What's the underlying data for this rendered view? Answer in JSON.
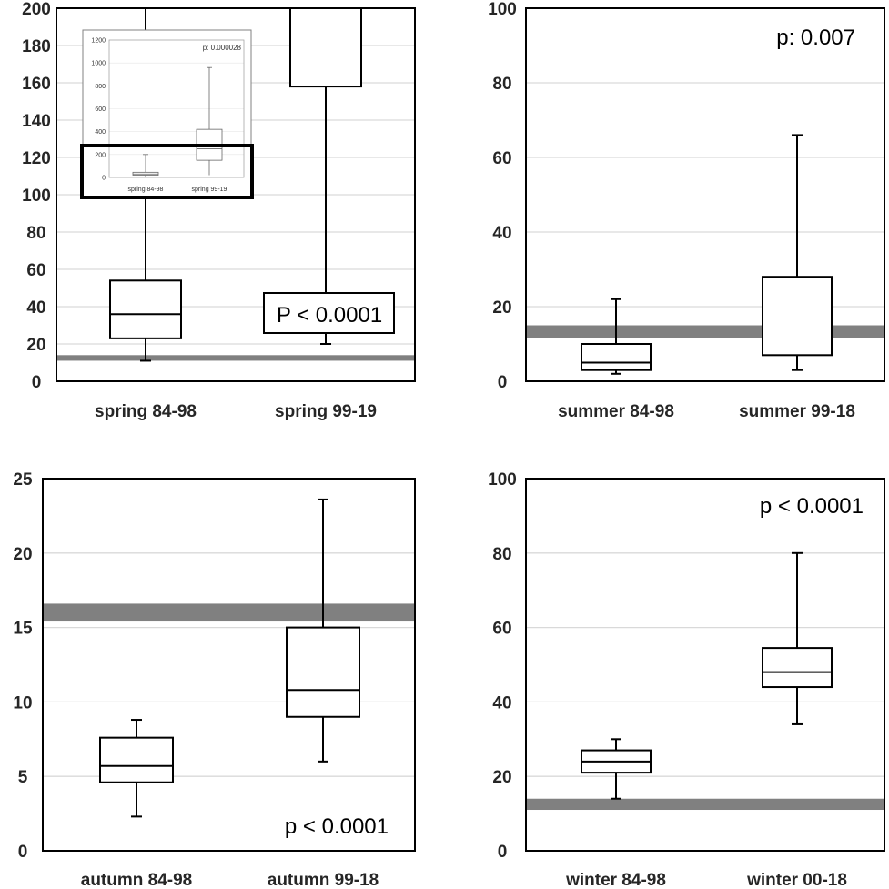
{
  "chart_data": [
    {
      "type": "box",
      "ylim": [
        0,
        200
      ],
      "yticks": [
        0,
        20,
        40,
        60,
        80,
        100,
        120,
        140,
        160,
        180,
        200
      ],
      "categories": [
        "spring  84-98",
        "spring 99-19"
      ],
      "boxes": [
        {
          "whisker_low": 11,
          "q1": 23,
          "median": 36,
          "q3": 54,
          "whisker_high": 200
        },
        {
          "whisker_low": 20,
          "q1": 158,
          "median": null,
          "q3": 200,
          "whisker_high": 200
        }
      ],
      "reference_band": [
        11,
        14
      ],
      "annotation": "P < 0.0001",
      "inset": {
        "ylim": [
          0,
          1200
        ],
        "yticks": [
          0,
          200,
          400,
          600,
          800,
          1000,
          1200
        ],
        "categories": [
          "spring  84-98",
          "spring 99-19"
        ],
        "annotation": "p: 0.000028",
        "boxes": [
          {
            "whisker_low": 5,
            "q1": 20,
            "median": 30,
            "q3": 45,
            "whisker_high": 200
          },
          {
            "whisker_low": 20,
            "q1": 150,
            "median": 250,
            "q3": 420,
            "whisker_high": 960
          }
        ]
      }
    },
    {
      "type": "box",
      "ylim": [
        0,
        100
      ],
      "yticks": [
        0,
        20,
        40,
        60,
        80,
        100
      ],
      "categories": [
        "summer 84-98",
        "summer 99-18"
      ],
      "boxes": [
        {
          "whisker_low": 2,
          "q1": 3,
          "median": 5,
          "q3": 10,
          "whisker_high": 22
        },
        {
          "whisker_low": 3,
          "q1": 7,
          "median": null,
          "q3": 28,
          "whisker_high": 66
        }
      ],
      "reference_band": [
        11.5,
        15
      ],
      "annotation": "p: 0.007"
    },
    {
      "type": "box",
      "ylim": [
        0,
        25
      ],
      "yticks": [
        0,
        5,
        10,
        15,
        20,
        25
      ],
      "categories": [
        "autumn 84-98",
        "autumn 99-18"
      ],
      "boxes": [
        {
          "whisker_low": 2.3,
          "q1": 4.6,
          "median": 5.7,
          "q3": 7.6,
          "whisker_high": 8.8
        },
        {
          "whisker_low": 6,
          "q1": 9,
          "median": 10.8,
          "q3": 15,
          "whisker_high": 23.6
        }
      ],
      "reference_band": [
        15.4,
        16.6
      ],
      "annotation": "p < 0.0001"
    },
    {
      "type": "box",
      "ylim": [
        0,
        100
      ],
      "yticks": [
        0,
        20,
        40,
        60,
        80,
        100
      ],
      "categories": [
        "winter 84-98",
        "winter 00-18"
      ],
      "boxes": [
        {
          "whisker_low": 14,
          "q1": 21,
          "median": 24,
          "q3": 27,
          "whisker_high": 30
        },
        {
          "whisker_low": 34,
          "q1": 44,
          "median": 48,
          "q3": 54.5,
          "whisker_high": 80
        }
      ],
      "reference_band": [
        11,
        14
      ],
      "annotation": "p < 0.0001"
    }
  ]
}
